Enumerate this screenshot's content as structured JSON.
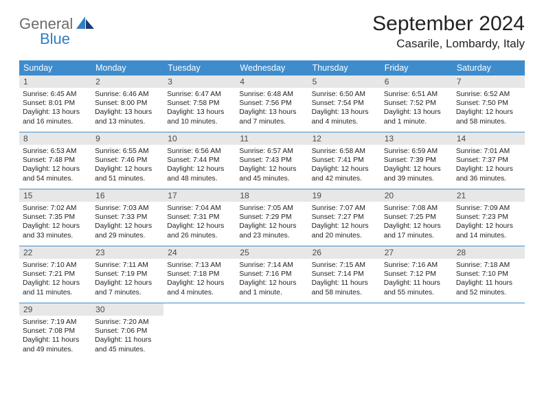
{
  "brand": {
    "general": "General",
    "blue": "Blue"
  },
  "colors": {
    "header_bar": "#3e8ccc",
    "daynum_bg": "#e7e7e7",
    "brand_gray": "#6b6b6b",
    "brand_blue": "#2f7ec2",
    "text": "#222222"
  },
  "month_title": "September 2024",
  "location": "Casarile, Lombardy, Italy",
  "day_headers": [
    "Sunday",
    "Monday",
    "Tuesday",
    "Wednesday",
    "Thursday",
    "Friday",
    "Saturday"
  ],
  "weeks": [
    [
      {
        "n": "1",
        "sunrise": "Sunrise: 6:45 AM",
        "sunset": "Sunset: 8:01 PM",
        "day1": "Daylight: 13 hours",
        "day2": "and 16 minutes."
      },
      {
        "n": "2",
        "sunrise": "Sunrise: 6:46 AM",
        "sunset": "Sunset: 8:00 PM",
        "day1": "Daylight: 13 hours",
        "day2": "and 13 minutes."
      },
      {
        "n": "3",
        "sunrise": "Sunrise: 6:47 AM",
        "sunset": "Sunset: 7:58 PM",
        "day1": "Daylight: 13 hours",
        "day2": "and 10 minutes."
      },
      {
        "n": "4",
        "sunrise": "Sunrise: 6:48 AM",
        "sunset": "Sunset: 7:56 PM",
        "day1": "Daylight: 13 hours",
        "day2": "and 7 minutes."
      },
      {
        "n": "5",
        "sunrise": "Sunrise: 6:50 AM",
        "sunset": "Sunset: 7:54 PM",
        "day1": "Daylight: 13 hours",
        "day2": "and 4 minutes."
      },
      {
        "n": "6",
        "sunrise": "Sunrise: 6:51 AM",
        "sunset": "Sunset: 7:52 PM",
        "day1": "Daylight: 13 hours",
        "day2": "and 1 minute."
      },
      {
        "n": "7",
        "sunrise": "Sunrise: 6:52 AM",
        "sunset": "Sunset: 7:50 PM",
        "day1": "Daylight: 12 hours",
        "day2": "and 58 minutes."
      }
    ],
    [
      {
        "n": "8",
        "sunrise": "Sunrise: 6:53 AM",
        "sunset": "Sunset: 7:48 PM",
        "day1": "Daylight: 12 hours",
        "day2": "and 54 minutes."
      },
      {
        "n": "9",
        "sunrise": "Sunrise: 6:55 AM",
        "sunset": "Sunset: 7:46 PM",
        "day1": "Daylight: 12 hours",
        "day2": "and 51 minutes."
      },
      {
        "n": "10",
        "sunrise": "Sunrise: 6:56 AM",
        "sunset": "Sunset: 7:44 PM",
        "day1": "Daylight: 12 hours",
        "day2": "and 48 minutes."
      },
      {
        "n": "11",
        "sunrise": "Sunrise: 6:57 AM",
        "sunset": "Sunset: 7:43 PM",
        "day1": "Daylight: 12 hours",
        "day2": "and 45 minutes."
      },
      {
        "n": "12",
        "sunrise": "Sunrise: 6:58 AM",
        "sunset": "Sunset: 7:41 PM",
        "day1": "Daylight: 12 hours",
        "day2": "and 42 minutes."
      },
      {
        "n": "13",
        "sunrise": "Sunrise: 6:59 AM",
        "sunset": "Sunset: 7:39 PM",
        "day1": "Daylight: 12 hours",
        "day2": "and 39 minutes."
      },
      {
        "n": "14",
        "sunrise": "Sunrise: 7:01 AM",
        "sunset": "Sunset: 7:37 PM",
        "day1": "Daylight: 12 hours",
        "day2": "and 36 minutes."
      }
    ],
    [
      {
        "n": "15",
        "sunrise": "Sunrise: 7:02 AM",
        "sunset": "Sunset: 7:35 PM",
        "day1": "Daylight: 12 hours",
        "day2": "and 33 minutes."
      },
      {
        "n": "16",
        "sunrise": "Sunrise: 7:03 AM",
        "sunset": "Sunset: 7:33 PM",
        "day1": "Daylight: 12 hours",
        "day2": "and 29 minutes."
      },
      {
        "n": "17",
        "sunrise": "Sunrise: 7:04 AM",
        "sunset": "Sunset: 7:31 PM",
        "day1": "Daylight: 12 hours",
        "day2": "and 26 minutes."
      },
      {
        "n": "18",
        "sunrise": "Sunrise: 7:05 AM",
        "sunset": "Sunset: 7:29 PM",
        "day1": "Daylight: 12 hours",
        "day2": "and 23 minutes."
      },
      {
        "n": "19",
        "sunrise": "Sunrise: 7:07 AM",
        "sunset": "Sunset: 7:27 PM",
        "day1": "Daylight: 12 hours",
        "day2": "and 20 minutes."
      },
      {
        "n": "20",
        "sunrise": "Sunrise: 7:08 AM",
        "sunset": "Sunset: 7:25 PM",
        "day1": "Daylight: 12 hours",
        "day2": "and 17 minutes."
      },
      {
        "n": "21",
        "sunrise": "Sunrise: 7:09 AM",
        "sunset": "Sunset: 7:23 PM",
        "day1": "Daylight: 12 hours",
        "day2": "and 14 minutes."
      }
    ],
    [
      {
        "n": "22",
        "sunrise": "Sunrise: 7:10 AM",
        "sunset": "Sunset: 7:21 PM",
        "day1": "Daylight: 12 hours",
        "day2": "and 11 minutes."
      },
      {
        "n": "23",
        "sunrise": "Sunrise: 7:11 AM",
        "sunset": "Sunset: 7:19 PM",
        "day1": "Daylight: 12 hours",
        "day2": "and 7 minutes."
      },
      {
        "n": "24",
        "sunrise": "Sunrise: 7:13 AM",
        "sunset": "Sunset: 7:18 PM",
        "day1": "Daylight: 12 hours",
        "day2": "and 4 minutes."
      },
      {
        "n": "25",
        "sunrise": "Sunrise: 7:14 AM",
        "sunset": "Sunset: 7:16 PM",
        "day1": "Daylight: 12 hours",
        "day2": "and 1 minute."
      },
      {
        "n": "26",
        "sunrise": "Sunrise: 7:15 AM",
        "sunset": "Sunset: 7:14 PM",
        "day1": "Daylight: 11 hours",
        "day2": "and 58 minutes."
      },
      {
        "n": "27",
        "sunrise": "Sunrise: 7:16 AM",
        "sunset": "Sunset: 7:12 PM",
        "day1": "Daylight: 11 hours",
        "day2": "and 55 minutes."
      },
      {
        "n": "28",
        "sunrise": "Sunrise: 7:18 AM",
        "sunset": "Sunset: 7:10 PM",
        "day1": "Daylight: 11 hours",
        "day2": "and 52 minutes."
      }
    ],
    [
      {
        "n": "29",
        "sunrise": "Sunrise: 7:19 AM",
        "sunset": "Sunset: 7:08 PM",
        "day1": "Daylight: 11 hours",
        "day2": "and 49 minutes."
      },
      {
        "n": "30",
        "sunrise": "Sunrise: 7:20 AM",
        "sunset": "Sunset: 7:06 PM",
        "day1": "Daylight: 11 hours",
        "day2": "and 45 minutes."
      },
      {
        "empty": true
      },
      {
        "empty": true
      },
      {
        "empty": true
      },
      {
        "empty": true
      },
      {
        "empty": true
      }
    ]
  ]
}
